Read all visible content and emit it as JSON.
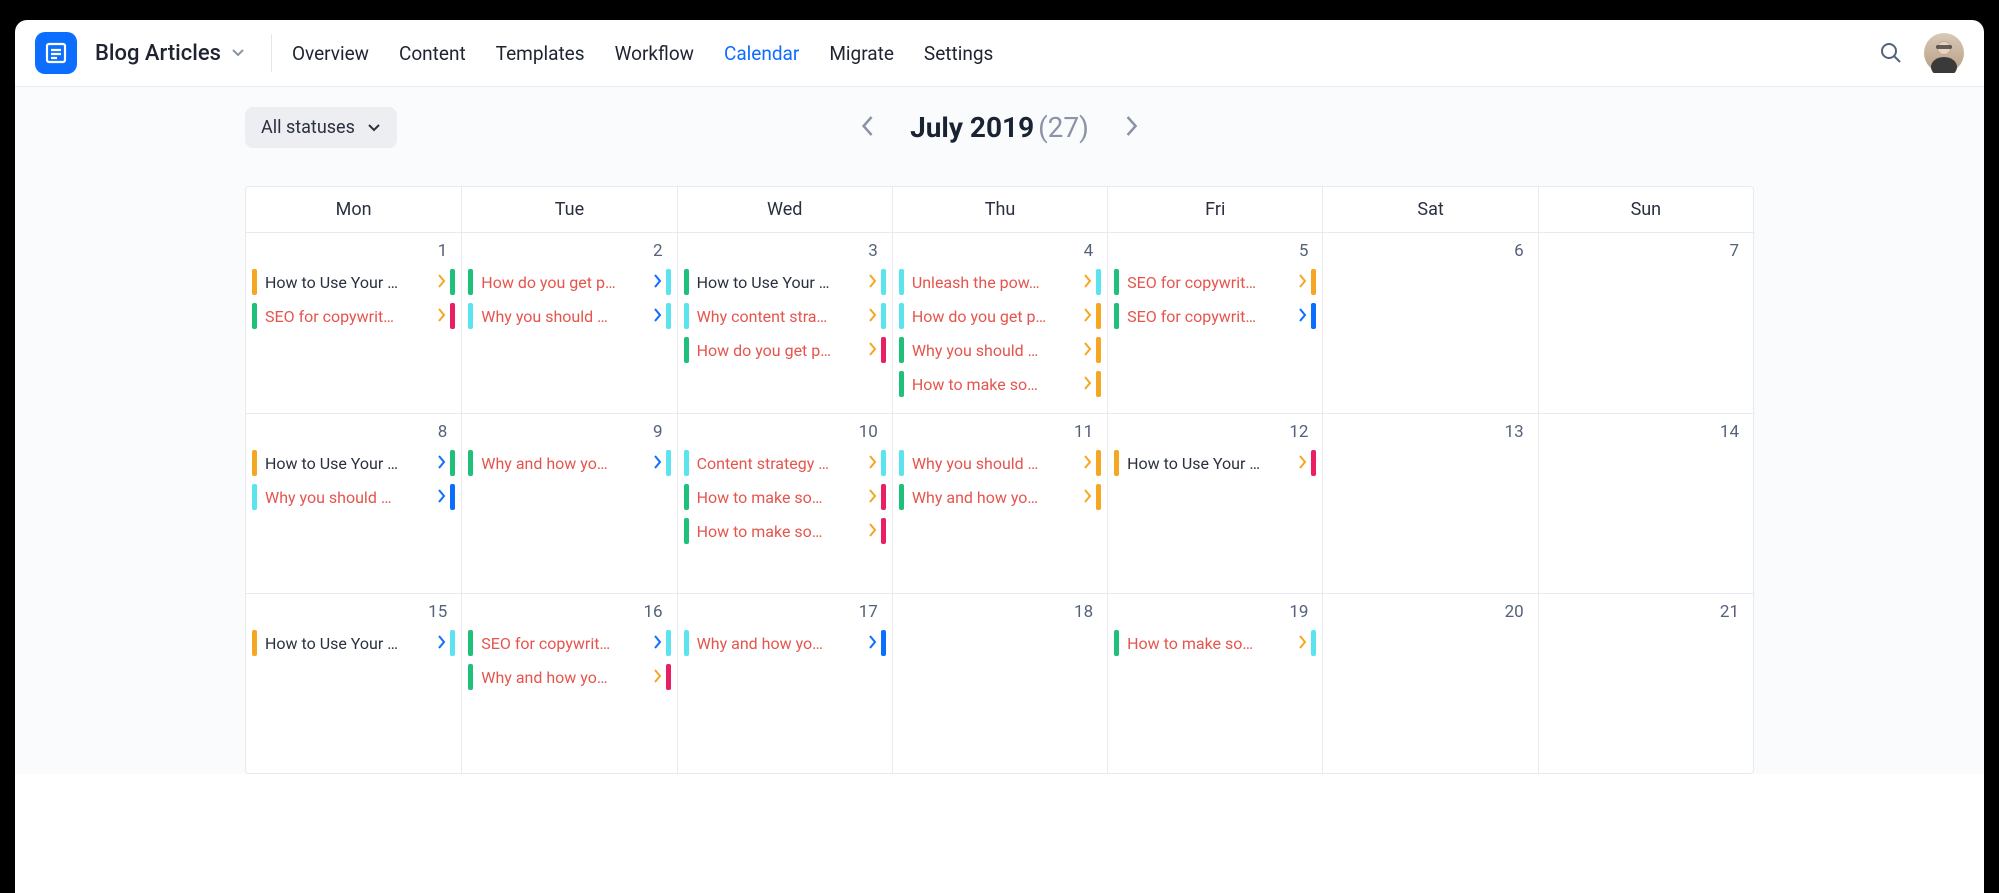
{
  "app": {
    "icon_bg": "#0b6eff",
    "title": "Blog Articles"
  },
  "nav": {
    "items": [
      "Overview",
      "Content",
      "Templates",
      "Workflow",
      "Calendar",
      "Migrate",
      "Settings"
    ],
    "active_index": 4
  },
  "filter": {
    "label": "All statuses"
  },
  "month": {
    "label": "July 2019",
    "count": "(27)"
  },
  "days": [
    "Mon",
    "Tue",
    "Wed",
    "Thu",
    "Fri",
    "Sat",
    "Sun"
  ],
  "colors": {
    "orange": "#f5a623",
    "green": "#1fc07a",
    "cyan": "#5be3f0",
    "magenta": "#e91e63",
    "blue": "#0b6eff",
    "text_dark": "#2a3040",
    "text_red": "#e5554e",
    "chev_orange": "#f5a623",
    "chev_blue": "#0b6eff"
  },
  "weeks": [
    {
      "dates": [
        1,
        2,
        3,
        4,
        5,
        6,
        7
      ],
      "events": [
        [
          {
            "l": "orange",
            "t": "How to Use Your …",
            "tc": "text_dark",
            "cc": "chev_orange",
            "r": "green"
          },
          {
            "l": "green",
            "t": "SEO for copywrit…",
            "tc": "text_red",
            "cc": "chev_orange",
            "r": "magenta"
          }
        ],
        [
          {
            "l": "green",
            "t": "How do you get p…",
            "tc": "text_red",
            "cc": "chev_blue",
            "r": "cyan"
          },
          {
            "l": "cyan",
            "t": "Why you should …",
            "tc": "text_red",
            "cc": "chev_blue",
            "r": "cyan"
          }
        ],
        [
          {
            "l": "green",
            "t": "How to Use Your …",
            "tc": "text_dark",
            "cc": "chev_orange",
            "r": "cyan"
          },
          {
            "l": "cyan",
            "t": "Why content stra…",
            "tc": "text_red",
            "cc": "chev_orange",
            "r": "cyan"
          },
          {
            "l": "green",
            "t": "How do you get p…",
            "tc": "text_red",
            "cc": "chev_orange",
            "r": "magenta"
          }
        ],
        [
          {
            "l": "cyan",
            "t": "Unleash the pow…",
            "tc": "text_red",
            "cc": "chev_orange",
            "r": "cyan"
          },
          {
            "l": "cyan",
            "t": "How do you get p…",
            "tc": "text_red",
            "cc": "chev_orange",
            "r": "orange"
          },
          {
            "l": "green",
            "t": "Why you should …",
            "tc": "text_red",
            "cc": "chev_orange",
            "r": "orange"
          },
          {
            "l": "green",
            "t": "How to make so…",
            "tc": "text_red",
            "cc": "chev_orange",
            "r": "orange"
          }
        ],
        [
          {
            "l": "green",
            "t": "SEO for copywrit…",
            "tc": "text_red",
            "cc": "chev_orange",
            "r": "orange"
          },
          {
            "l": "green",
            "t": "SEO for copywrit…",
            "tc": "text_red",
            "cc": "chev_blue",
            "r": "blue"
          }
        ],
        [],
        []
      ]
    },
    {
      "dates": [
        8,
        9,
        10,
        11,
        12,
        13,
        14
      ],
      "events": [
        [
          {
            "l": "orange",
            "t": "How to Use Your …",
            "tc": "text_dark",
            "cc": "chev_blue",
            "r": "green"
          },
          {
            "l": "cyan",
            "t": "Why you should …",
            "tc": "text_red",
            "cc": "chev_blue",
            "r": "blue"
          }
        ],
        [
          {
            "l": "green",
            "t": "Why and how yo…",
            "tc": "text_red",
            "cc": "chev_blue",
            "r": "cyan"
          }
        ],
        [
          {
            "l": "cyan",
            "t": "Content strategy …",
            "tc": "text_red",
            "cc": "chev_orange",
            "r": "cyan"
          },
          {
            "l": "green",
            "t": "How to make so…",
            "tc": "text_red",
            "cc": "chev_orange",
            "r": "magenta"
          },
          {
            "l": "green",
            "t": "How to make so…",
            "tc": "text_red",
            "cc": "chev_orange",
            "r": "magenta"
          }
        ],
        [
          {
            "l": "cyan",
            "t": "Why you should …",
            "tc": "text_red",
            "cc": "chev_orange",
            "r": "orange"
          },
          {
            "l": "green",
            "t": "Why and how yo…",
            "tc": "text_red",
            "cc": "chev_orange",
            "r": "orange"
          }
        ],
        [
          {
            "l": "orange",
            "t": "How to Use Your …",
            "tc": "text_dark",
            "cc": "chev_orange",
            "r": "magenta"
          }
        ],
        [],
        []
      ]
    },
    {
      "dates": [
        15,
        16,
        17,
        18,
        19,
        20,
        21
      ],
      "events": [
        [
          {
            "l": "orange",
            "t": "How to Use Your …",
            "tc": "text_dark",
            "cc": "chev_blue",
            "r": "cyan"
          }
        ],
        [
          {
            "l": "green",
            "t": "SEO for copywrit…",
            "tc": "text_red",
            "cc": "chev_blue",
            "r": "cyan"
          },
          {
            "l": "green",
            "t": "Why and how yo…",
            "tc": "text_red",
            "cc": "chev_orange",
            "r": "magenta"
          }
        ],
        [
          {
            "l": "cyan",
            "t": "Why and how yo…",
            "tc": "text_red",
            "cc": "chev_blue",
            "r": "blue"
          }
        ],
        [],
        [
          {
            "l": "green",
            "t": "How to make so…",
            "tc": "text_red",
            "cc": "chev_orange",
            "r": "cyan"
          }
        ],
        [],
        []
      ]
    }
  ]
}
